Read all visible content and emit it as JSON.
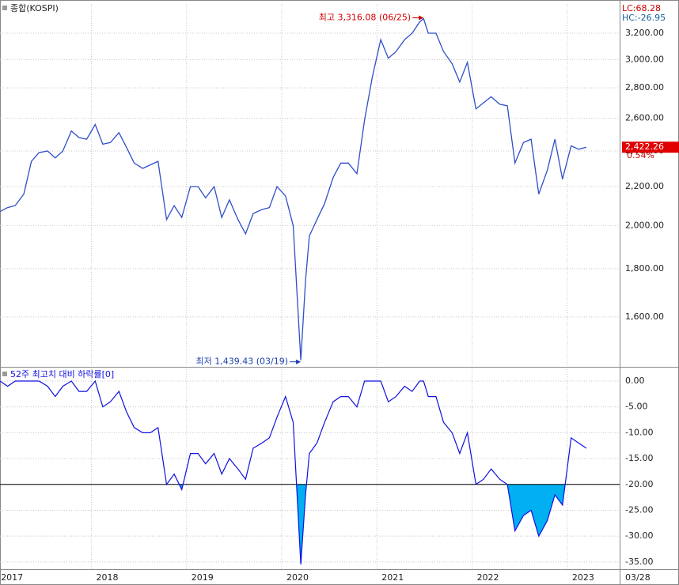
{
  "chart_data": [
    {
      "type": "line",
      "title": "종합(KOSPI)",
      "lc_label": "LC:68.28",
      "hc_label": "HC:-26.95",
      "last": {
        "value": 2422.26,
        "label": "2,422.26"
      },
      "change_label": "0.54%",
      "high_label": "최고 3,316.08 (06/25)",
      "low_label": "최저 1,439.43 (03/19)",
      "color": "#2f4fc8",
      "log_scale": true,
      "grid": true,
      "xlim": [
        2017.04,
        2023.55
      ],
      "ylim": [
        1422,
        3437
      ],
      "yticks": [
        {
          "value": 1600,
          "label": "1,600.00"
        },
        {
          "value": 1800,
          "label": "1,800.00"
        },
        {
          "value": 2000,
          "label": "2,000.00"
        },
        {
          "value": 2200,
          "label": "2,200.00"
        },
        {
          "value": 2400,
          "label": "2,400.00"
        },
        {
          "value": 2600,
          "label": "2,600.00"
        },
        {
          "value": 2800,
          "label": "2,800.00"
        },
        {
          "value": 3000,
          "label": "3,000.00"
        },
        {
          "value": 3200,
          "label": "3,200.00"
        }
      ],
      "x": [
        2017.04,
        2017.12,
        2017.2,
        2017.29,
        2017.37,
        2017.45,
        2017.54,
        2017.62,
        2017.7,
        2017.79,
        2017.87,
        2017.95,
        2018.04,
        2018.12,
        2018.2,
        2018.29,
        2018.37,
        2018.45,
        2018.54,
        2018.62,
        2018.7,
        2018.79,
        2018.87,
        2018.95,
        2019.04,
        2019.12,
        2019.2,
        2019.29,
        2019.37,
        2019.45,
        2019.54,
        2019.62,
        2019.7,
        2019.79,
        2019.87,
        2019.95,
        2020.04,
        2020.12,
        2020.2,
        2020.25,
        2020.29,
        2020.37,
        2020.45,
        2020.54,
        2020.62,
        2020.7,
        2020.79,
        2020.87,
        2020.95,
        2021.04,
        2021.12,
        2021.2,
        2021.29,
        2021.37,
        2021.45,
        2021.49,
        2021.54,
        2021.62,
        2021.7,
        2021.79,
        2021.87,
        2021.95,
        2022.04,
        2022.12,
        2022.2,
        2022.29,
        2022.37,
        2022.45,
        2022.54,
        2022.62,
        2022.7,
        2022.79,
        2022.87,
        2022.95,
        2023.04,
        2023.12,
        2023.2
      ],
      "values": [
        2070,
        2090,
        2100,
        2160,
        2340,
        2390,
        2400,
        2360,
        2400,
        2520,
        2480,
        2470,
        2560,
        2440,
        2450,
        2510,
        2420,
        2330,
        2300,
        2320,
        2340,
        2030,
        2100,
        2040,
        2200,
        2200,
        2140,
        2200,
        2040,
        2130,
        2030,
        1960,
        2060,
        2080,
        2090,
        2200,
        2150,
        2000,
        1439.43,
        1750,
        1950,
        2030,
        2110,
        2250,
        2330,
        2330,
        2270,
        2590,
        2870,
        3150,
        3010,
        3060,
        3150,
        3200,
        3290,
        3316.08,
        3200,
        3200,
        3060,
        2970,
        2840,
        2980,
        2660,
        2700,
        2740,
        2690,
        2680,
        2330,
        2450,
        2470,
        2160,
        2290,
        2470,
        2240,
        2430,
        2410,
        2422.26
      ]
    },
    {
      "type": "area",
      "title": "52주 최고치 대비 하락률[0]",
      "date_label": "03/28",
      "color": "#1010e0",
      "fill": "#00b0f0",
      "threshold": -20,
      "grid": true,
      "xlim": [
        2017.04,
        2023.55
      ],
      "ylim": [
        -36.4,
        2.3
      ],
      "xticks": [
        2017,
        2018,
        2019,
        2020,
        2021,
        2022,
        2023
      ],
      "yticks": [
        {
          "value": 0,
          "label": "0.00"
        },
        {
          "value": -5,
          "label": "-5.00"
        },
        {
          "value": -10,
          "label": "-10.00"
        },
        {
          "value": -15,
          "label": "-15.00"
        },
        {
          "value": -20,
          "label": "-20.00"
        },
        {
          "value": -25,
          "label": "-25.00"
        },
        {
          "value": -30,
          "label": "-30.00"
        },
        {
          "value": -35,
          "label": "-35.00"
        }
      ],
      "x": [
        2017.04,
        2017.12,
        2017.2,
        2017.29,
        2017.37,
        2017.45,
        2017.54,
        2017.62,
        2017.7,
        2017.79,
        2017.87,
        2017.95,
        2018.04,
        2018.12,
        2018.2,
        2018.29,
        2018.37,
        2018.45,
        2018.54,
        2018.62,
        2018.7,
        2018.79,
        2018.87,
        2018.95,
        2019.04,
        2019.12,
        2019.2,
        2019.29,
        2019.37,
        2019.45,
        2019.54,
        2019.62,
        2019.7,
        2019.79,
        2019.87,
        2019.95,
        2020.04,
        2020.12,
        2020.2,
        2020.25,
        2020.29,
        2020.37,
        2020.45,
        2020.54,
        2020.62,
        2020.7,
        2020.79,
        2020.87,
        2020.95,
        2021.04,
        2021.12,
        2021.2,
        2021.29,
        2021.37,
        2021.45,
        2021.49,
        2021.54,
        2021.62,
        2021.7,
        2021.79,
        2021.87,
        2021.95,
        2022.04,
        2022.12,
        2022.2,
        2022.29,
        2022.37,
        2022.45,
        2022.54,
        2022.62,
        2022.7,
        2022.79,
        2022.87,
        2022.95,
        2023.04,
        2023.12,
        2023.2
      ],
      "values": [
        0,
        -1,
        0,
        0,
        0,
        0,
        -1,
        -3,
        -1,
        0,
        -2,
        -2,
        0,
        -5,
        -4,
        -2,
        -6,
        -9,
        -10,
        -10,
        -9,
        -20,
        -18,
        -21,
        -14,
        -14,
        -16,
        -14,
        -18,
        -15,
        -17,
        -19,
        -13,
        -12,
        -11,
        -7,
        -3,
        -8,
        -35.5,
        -22,
        -14,
        -12,
        -8,
        -4,
        -3,
        -3,
        -5,
        0,
        0,
        0,
        -4,
        -3,
        -1,
        -2,
        0,
        0,
        -3,
        -3,
        -8,
        -10,
        -14,
        -10,
        -20,
        -19,
        -17,
        -19,
        -20,
        -29,
        -26,
        -25,
        -30,
        -27,
        -22,
        -24,
        -11,
        -12,
        -13
      ]
    }
  ]
}
